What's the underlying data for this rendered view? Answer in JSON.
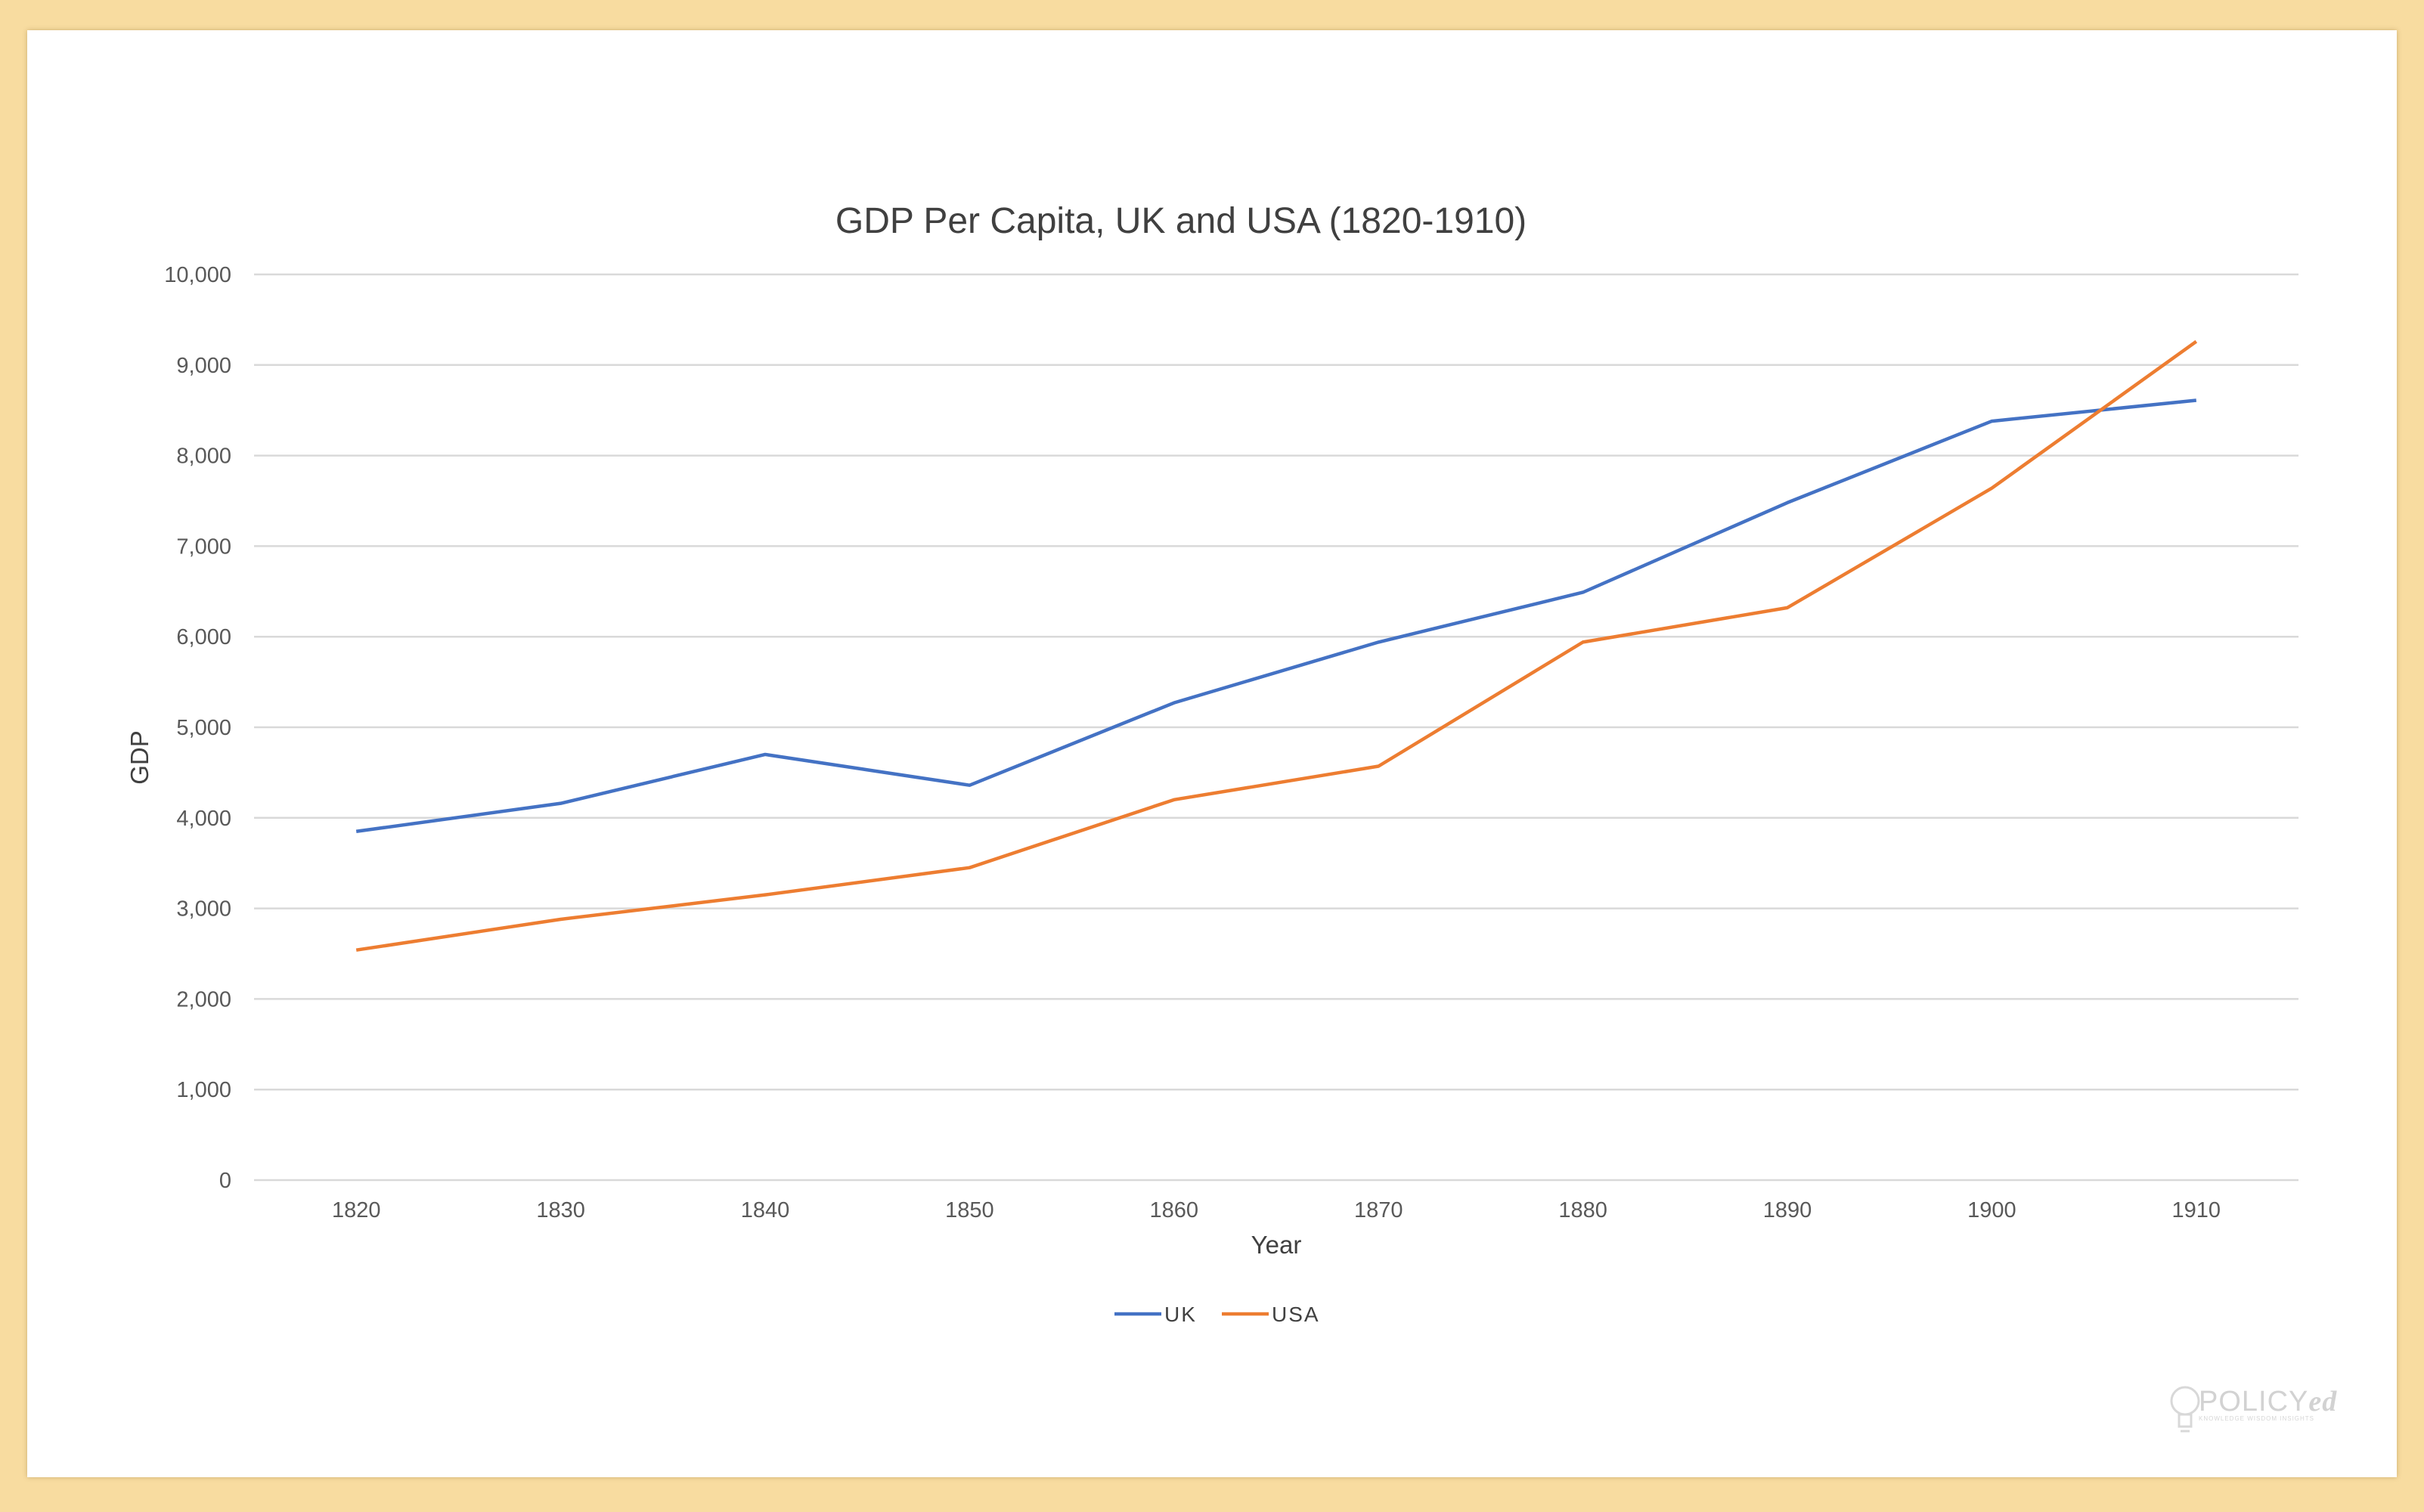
{
  "chart_data": {
    "type": "line",
    "title": "GDP Per Capita, UK and USA (1820-1910)",
    "xlabel": "Year",
    "ylabel": "GDP",
    "x": [
      1820,
      1830,
      1840,
      1850,
      1860,
      1870,
      1880,
      1890,
      1900,
      1910
    ],
    "x_tick_labels": [
      "1820",
      "1830",
      "1840",
      "1850",
      "1860",
      "1870",
      "1880",
      "1890",
      "1900",
      "1910"
    ],
    "ylim": [
      0,
      10000
    ],
    "y_ticks": [
      0,
      1000,
      2000,
      3000,
      4000,
      5000,
      6000,
      7000,
      8000,
      9000,
      10000
    ],
    "y_tick_labels": [
      "0",
      "1,000",
      "2,000",
      "3,000",
      "4,000",
      "5,000",
      "6,000",
      "7,000",
      "8,000",
      "9,000",
      "10,000"
    ],
    "series": [
      {
        "name": "UK",
        "color": "#4472c4",
        "values": [
          3850,
          4160,
          4700,
          4360,
          5270,
          5940,
          6490,
          7480,
          8380,
          8610
        ]
      },
      {
        "name": "USA",
        "color": "#ed7d31",
        "values": [
          2540,
          2880,
          3150,
          3450,
          4200,
          4570,
          5940,
          6320,
          7640,
          9260
        ]
      }
    ],
    "grid": true,
    "legend": "bottom-center"
  },
  "watermark": {
    "brand_main": "POLICY",
    "brand_suffix": "ed",
    "icon": "lightbulb-icon",
    "tagline": "KNOWLEDGE WISDOM INSIGHTS"
  }
}
